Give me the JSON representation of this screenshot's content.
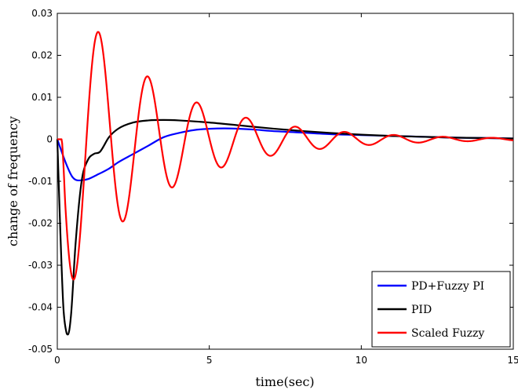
{
  "chart_data": {
    "type": "line",
    "title": "",
    "xlabel": "time(sec)",
    "ylabel": "change of frequency",
    "xlim": [
      0,
      15
    ],
    "ylim": [
      -0.05,
      0.03
    ],
    "grid": false,
    "legend_position": "bottom-right",
    "x_ticks": [
      0,
      5,
      10,
      15
    ],
    "x_tick_labels": [
      "0",
      "5",
      "10",
      "15"
    ],
    "y_ticks": [
      -0.05,
      -0.04,
      -0.03,
      -0.02,
      -0.01,
      0,
      0.01,
      0.02,
      0.03
    ],
    "y_tick_labels": [
      "-0.05",
      "-0.04",
      "-0.03",
      "-0.02",
      "-0.01",
      "0",
      "0.01",
      "0.02",
      "0.03"
    ],
    "series": [
      {
        "name": "PD+Fuzzy PI",
        "color": "#0000ff",
        "x": [
          0,
          0.3,
          0.5,
          0.7,
          1.0,
          1.3,
          1.7,
          2.0,
          2.5,
          3.0,
          3.5,
          4.0,
          4.5,
          5.0,
          5.5,
          6.0,
          6.5,
          7.0,
          8.0,
          9.0,
          10.0,
          11.0,
          12.0,
          13.0,
          14.0,
          15.0
        ],
        "y": [
          0,
          -0.006,
          -0.009,
          -0.0098,
          -0.0095,
          -0.0085,
          -0.007,
          -0.0055,
          -0.0035,
          -0.0015,
          0.0005,
          0.0015,
          0.0022,
          0.0025,
          0.0026,
          0.0025,
          0.0023,
          0.002,
          0.0016,
          0.0012,
          0.001,
          0.0008,
          0.0006,
          0.0004,
          0.0003,
          0.0002
        ]
      },
      {
        "name": "PID",
        "color": "#000000",
        "x": [
          0,
          0.1,
          0.2,
          0.3,
          0.35,
          0.45,
          0.6,
          0.8,
          1.0,
          1.2,
          1.4,
          1.7,
          2.0,
          2.5,
          3.0,
          3.5,
          4.0,
          5.0,
          6.0,
          7.0,
          8.0,
          9.0,
          10.0,
          11.0,
          12.0,
          13.0,
          14.0,
          15.0
        ],
        "y": [
          0,
          -0.022,
          -0.04,
          -0.046,
          -0.0465,
          -0.042,
          -0.025,
          -0.01,
          -0.005,
          -0.0035,
          -0.003,
          0.0005,
          0.0025,
          0.004,
          0.0045,
          0.0046,
          0.0045,
          0.004,
          0.0033,
          0.0026,
          0.002,
          0.0015,
          0.0011,
          0.0008,
          0.0006,
          0.0004,
          0.0003,
          0.0002
        ]
      },
      {
        "name": "Scaled Fuzzy",
        "color": "#ff0000",
        "damped_sine": {
          "amplitude": 0.04,
          "decay": 0.33,
          "period": 1.62,
          "phase_shift": 0.15,
          "ramp_time": 0.25
        }
      }
    ]
  }
}
